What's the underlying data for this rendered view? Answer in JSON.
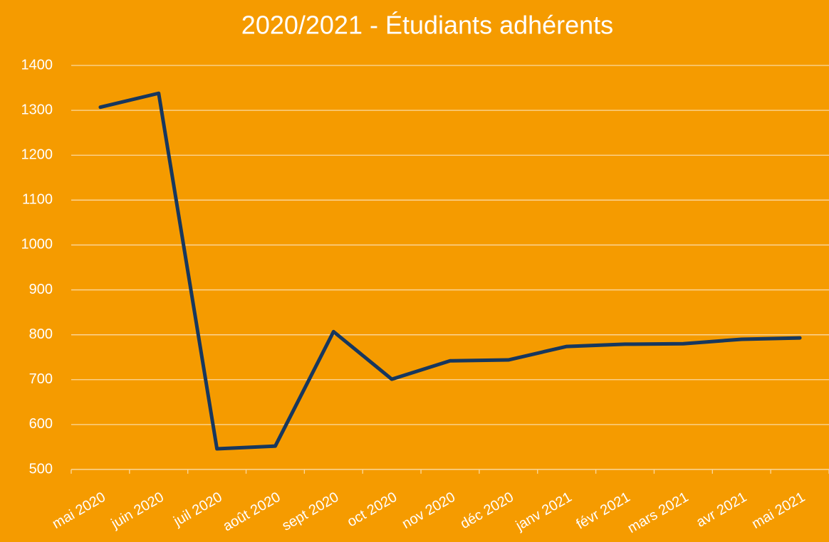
{
  "chart_data": {
    "type": "line",
    "title": "2020/2021 - Étudiants adhérents",
    "categories": [
      "mai 2020",
      "juin 2020",
      "juil 2020",
      "août 2020",
      "sept 2020",
      "oct 2020",
      "nov 2020",
      "déc 2020",
      "janv 2021",
      "févr 2021",
      "mars 2021",
      "avr 2021",
      "mai 2021"
    ],
    "values": [
      1307,
      1338,
      546,
      552,
      807,
      701,
      742,
      744,
      774,
      779,
      780,
      790,
      793
    ],
    "color": "#17375e",
    "ylim": [
      500,
      1400
    ],
    "yticks": [
      500,
      600,
      700,
      800,
      900,
      1000,
      1100,
      1200,
      1300,
      1400
    ],
    "grid": true
  }
}
